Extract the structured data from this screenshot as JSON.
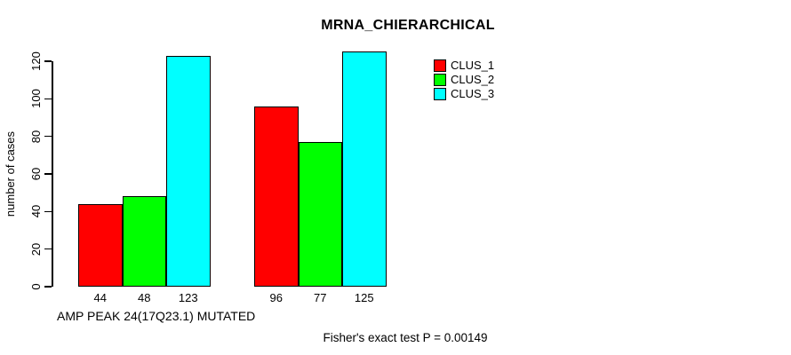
{
  "title": "MRNA_CHIERARCHICAL",
  "footer": "Fisher's exact test P = 0.00149",
  "colors": {
    "background": "#ffffff",
    "axis": "#000000",
    "bar_border": "#000000"
  },
  "chart_data": {
    "type": "bar",
    "title": "MRNA_CHIERARCHICAL",
    "xlabel": "AMP PEAK 24(17Q23.1) MUTATED",
    "ylabel": "number of cases",
    "categories": [
      "",
      ""
    ],
    "series": [
      {
        "name": "CLUS_1",
        "color": "#ff0000",
        "values": [
          44,
          96
        ]
      },
      {
        "name": "CLUS_2",
        "color": "#00ff00",
        "values": [
          48,
          77
        ]
      },
      {
        "name": "CLUS_3",
        "color": "#00ffff",
        "values": [
          123,
          125
        ]
      }
    ],
    "yticks": [
      0,
      20,
      40,
      60,
      80,
      100,
      120
    ],
    "ylim": [
      0,
      127
    ],
    "grid": false,
    "bar_value_labels_shown": true,
    "legend_position": "top-right",
    "annotation": "Fisher's exact test P = 0.00149"
  }
}
